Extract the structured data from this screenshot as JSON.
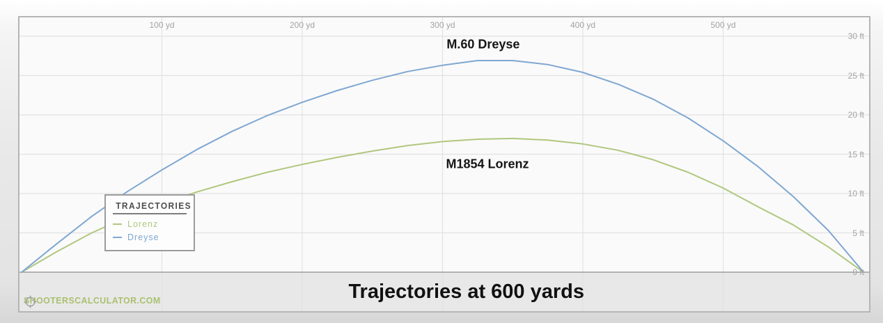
{
  "watermark": {
    "text": "SHOOTERSCALCULATOR.COM",
    "color": "#a9c16f"
  },
  "colors": {
    "plot_bg": "#fafafa",
    "band_bg": "#e8e8e8",
    "grid": "#e2e2e2",
    "axis_line": "#9a9a9a",
    "border": "#b5b5b5",
    "tick_text": "#a3a3a3",
    "reticle": "#9f9f9f"
  },
  "chart_data": {
    "type": "line",
    "title": "Trajectories at 600 yards",
    "x_unit": "yd",
    "y_unit": "ft",
    "xlim": [
      0,
      600
    ],
    "ylim": [
      0,
      30
    ],
    "grid": true,
    "x_ticks": [
      {
        "v": 100,
        "label": "100 yd"
      },
      {
        "v": 200,
        "label": "200 yd"
      },
      {
        "v": 300,
        "label": "300 yd"
      },
      {
        "v": 400,
        "label": "400 yd"
      },
      {
        "v": 500,
        "label": "500 yd"
      }
    ],
    "y_ticks": [
      {
        "v": 0,
        "label": "0 ft"
      },
      {
        "v": 5,
        "label": "5 ft"
      },
      {
        "v": 10,
        "label": "10 ft"
      },
      {
        "v": 15,
        "label": "15 ft"
      },
      {
        "v": 20,
        "label": "20 ft"
      },
      {
        "v": 25,
        "label": "25 ft"
      },
      {
        "v": 30,
        "label": "30 ft"
      }
    ],
    "legend": {
      "title": "TRAJECTORIES",
      "position": "left-middle"
    },
    "annotations": [
      {
        "text": "M.60 Dreyse",
        "x": 329,
        "y": 28.9
      },
      {
        "text": "M1854 Lorenz",
        "x": 332,
        "y": 13.7
      }
    ],
    "x": [
      0,
      25,
      50,
      75,
      100,
      125,
      150,
      175,
      200,
      225,
      250,
      275,
      300,
      325,
      350,
      375,
      400,
      425,
      450,
      475,
      500,
      525,
      550,
      575,
      600
    ],
    "series": [
      {
        "name": "Lorenz",
        "color": "#b0c77e",
        "values": [
          0,
          2.6,
          5.0,
          7.0,
          8.7,
          10.2,
          11.5,
          12.7,
          13.7,
          14.6,
          15.4,
          16.1,
          16.6,
          16.9,
          17.0,
          16.8,
          16.3,
          15.5,
          14.3,
          12.7,
          10.7,
          8.3,
          6.0,
          3.2,
          0
        ]
      },
      {
        "name": "Dreyse",
        "color": "#7fa7d1",
        "values": [
          0,
          3.6,
          7.1,
          10.2,
          13.0,
          15.6,
          17.9,
          19.9,
          21.6,
          23.1,
          24.4,
          25.5,
          26.3,
          26.9,
          26.9,
          26.4,
          25.4,
          23.9,
          22.0,
          19.6,
          16.7,
          13.4,
          9.6,
          5.3,
          0
        ]
      }
    ]
  }
}
